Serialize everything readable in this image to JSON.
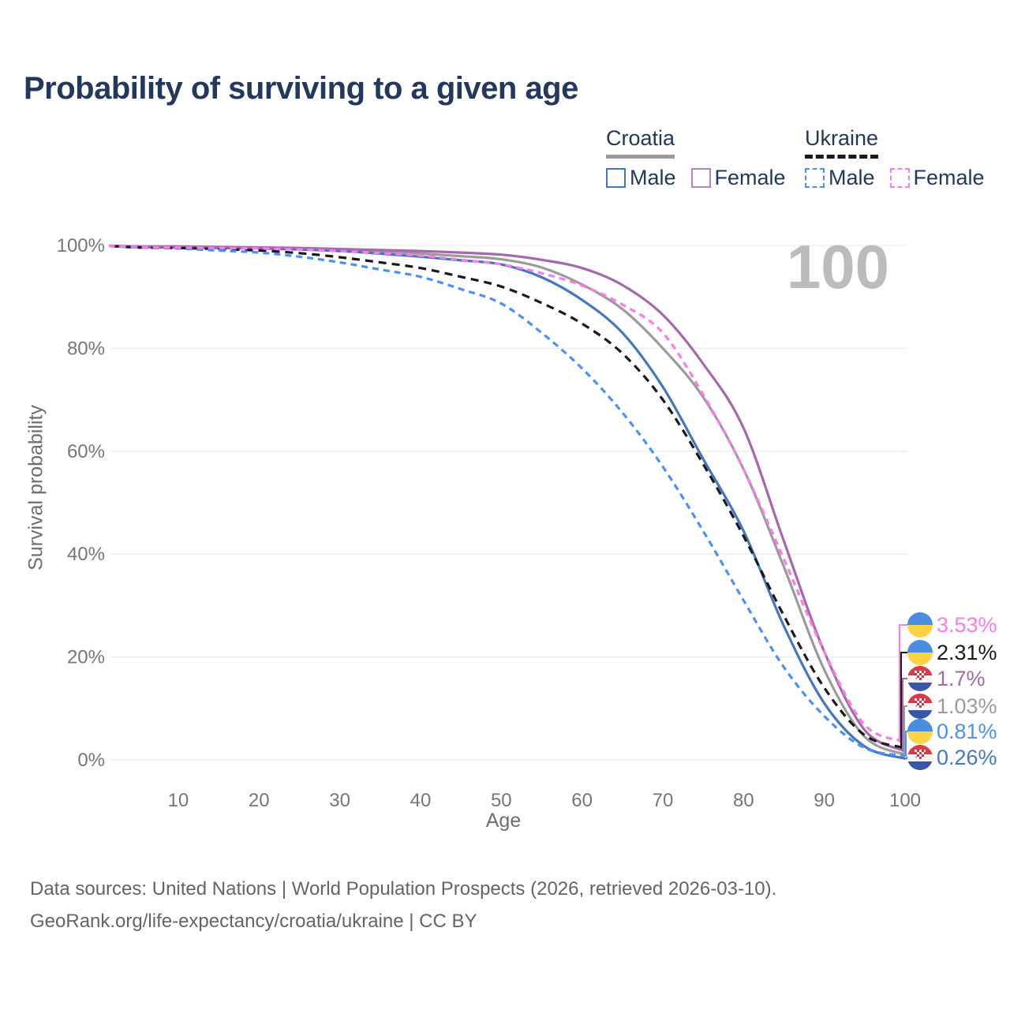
{
  "title": "Probability of surviving to a given age",
  "watermark": "100",
  "legend": {
    "groups": [
      {
        "name": "Croatia",
        "underline_style": "solid",
        "underline_color": "#9b9b9b",
        "items": [
          {
            "label": "Male",
            "color": "#4577c1",
            "dash": "solid"
          },
          {
            "label": "Female",
            "color": "#bc7ec4",
            "dash": "solid"
          }
        ]
      },
      {
        "name": "Ukraine",
        "underline_style": "dashed",
        "underline_color": "#1a1a1a",
        "items": [
          {
            "label": "Male",
            "color": "#4a90fa",
            "dash": "dashed"
          },
          {
            "label": "Female",
            "color": "#fb7be8",
            "dash": "dashed"
          }
        ]
      }
    ]
  },
  "chart_data": {
    "type": "line",
    "title": "Probability of surviving to a given age",
    "x_label": "Age",
    "y_label": "Survival probability",
    "xlim": [
      0,
      100
    ],
    "ylim": [
      0,
      100
    ],
    "x_ticks": [
      10,
      20,
      30,
      40,
      50,
      60,
      70,
      80,
      90,
      100
    ],
    "y_ticks": [
      0,
      20,
      40,
      60,
      80,
      100
    ],
    "y_tick_suffix": "%",
    "grid": "horizontal",
    "legend_position": "top-right",
    "x": [
      0,
      5,
      10,
      15,
      20,
      25,
      30,
      35,
      40,
      45,
      50,
      55,
      60,
      65,
      70,
      75,
      80,
      85,
      90,
      95,
      100
    ],
    "series": [
      {
        "name": "Croatia Total",
        "country": "Croatia",
        "sex": "total",
        "color": "#9b9b9b",
        "dash": "solid",
        "values": [
          100,
          99.8,
          99.7,
          99.6,
          99.5,
          99.4,
          99.1,
          98.8,
          98.4,
          97.9,
          97.3,
          95.7,
          92.4,
          87.6,
          80.0,
          70.5,
          56.5,
          37.5,
          17.5,
          4.5,
          1.03
        ],
        "end_label": "1.03%"
      },
      {
        "name": "Croatia Male",
        "country": "Croatia",
        "sex": "male",
        "color": "#4577c1",
        "dash": "solid",
        "values": [
          100,
          99.7,
          99.6,
          99.5,
          99.4,
          99.2,
          98.9,
          98.4,
          97.8,
          97.1,
          96.3,
          93.8,
          89.4,
          83.0,
          72.5,
          58.5,
          44.5,
          26.0,
          11.0,
          2.6,
          0.26
        ],
        "end_label": "0.26%"
      },
      {
        "name": "Croatia Female",
        "country": "Croatia",
        "sex": "female",
        "color": "#a667ad",
        "dash": "solid",
        "values": [
          100,
          99.8,
          99.8,
          99.7,
          99.6,
          99.5,
          99.3,
          99.1,
          98.9,
          98.6,
          98.2,
          97.2,
          95.6,
          92.3,
          86.5,
          77.0,
          64.5,
          42.5,
          21.0,
          5.8,
          1.7
        ],
        "end_label": "1.7%"
      },
      {
        "name": "Ukraine Total",
        "country": "Ukraine",
        "sex": "total",
        "color": "#1a1a1a",
        "dash": "dashed",
        "values": [
          100,
          99.6,
          99.5,
          99.3,
          99.0,
          98.5,
          97.7,
          96.7,
          95.6,
          93.9,
          92.0,
          88.8,
          84.8,
          79.0,
          70.0,
          57.5,
          43.5,
          28.0,
          14.0,
          4.8,
          2.31
        ],
        "end_label": "2.31%"
      },
      {
        "name": "Ukraine Male",
        "country": "Ukraine",
        "sex": "male",
        "color": "#4a90fa",
        "dash": "dashed",
        "values": [
          100,
          99.6,
          99.4,
          99.0,
          98.6,
          97.8,
          96.7,
          95.3,
          93.9,
          91.5,
          88.7,
          83.0,
          76.1,
          67.5,
          57.0,
          44.5,
          31.0,
          18.0,
          8.5,
          2.3,
          0.81
        ],
        "end_label": "0.81%"
      },
      {
        "name": "Ukraine Female",
        "country": "Ukraine",
        "sex": "female",
        "color": "#fb7be8",
        "dash": "dashed",
        "values": [
          100,
          99.7,
          99.6,
          99.5,
          99.4,
          99.2,
          98.9,
          98.5,
          98.0,
          97.2,
          96.3,
          94.6,
          92.2,
          88.5,
          83.0,
          71.0,
          56.5,
          39.0,
          21.0,
          6.8,
          3.53
        ],
        "end_label": "3.53%"
      }
    ],
    "end_labels": [
      {
        "text": "3.53%",
        "series": "Ukraine Female",
        "flag": "ukraine",
        "color": "#fb7be8"
      },
      {
        "text": "2.31%",
        "series": "Ukraine Total",
        "flag": "ukraine",
        "color": "#1a1a1a"
      },
      {
        "text": "1.7%",
        "series": "Croatia Female",
        "flag": "croatia",
        "color": "#a667ad"
      },
      {
        "text": "1.03%",
        "series": "Croatia Total",
        "flag": "croatia",
        "color": "#9b9b9b"
      },
      {
        "text": "0.81%",
        "series": "Ukraine Male",
        "flag": "ukraine",
        "color": "#4a90fa"
      },
      {
        "text": "0.26%",
        "series": "Croatia Male",
        "flag": "croatia",
        "color": "#4577c1"
      }
    ]
  },
  "footer": {
    "line1": "Data sources: United Nations | World Population Prospects (2026, retrieved 2026-03-10).",
    "line2": "GeoRank.org/life-expectancy/croatia/ukraine | CC BY"
  }
}
